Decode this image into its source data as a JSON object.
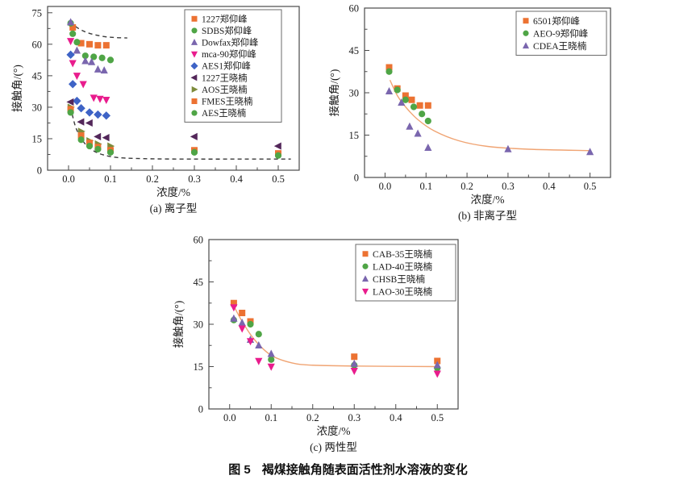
{
  "figure": {
    "caption_label": "图 5",
    "caption_text": "褐煤接触角随表面活性剂水溶液的变化"
  },
  "chart_data": [
    {
      "id": "a",
      "type": "scatter",
      "caption": "(a) 离子型",
      "xlabel": "浓度/%",
      "ylabel": "接触角/(°)",
      "xlim": [
        -0.05,
        0.55
      ],
      "ylim": [
        0,
        78
      ],
      "grid": false,
      "legend_position": "top-right",
      "xticks": [
        {
          "v": 0,
          "label": "0.0"
        },
        {
          "v": 0.1,
          "label": "0.1"
        },
        {
          "v": 0.2,
          "label": "0.2"
        },
        {
          "v": 0.3,
          "label": "0.3"
        },
        {
          "v": 0.4,
          "label": "0.4"
        },
        {
          "v": 0.5,
          "label": "0.5"
        }
      ],
      "yticks": [
        {
          "v": 0,
          "label": "0"
        },
        {
          "v": 15,
          "label": "15"
        },
        {
          "v": 30,
          "label": "30"
        },
        {
          "v": 45,
          "label": "45"
        },
        {
          "v": 60,
          "label": "60"
        },
        {
          "v": 75,
          "label": "75"
        }
      ],
      "series": [
        {
          "name": "1227郑仰峰",
          "marker": "square",
          "color": "#EC7232",
          "points": [
            [
              0.01,
              68
            ],
            [
              0.03,
              60.5
            ],
            [
              0.05,
              60
            ],
            [
              0.07,
              59.5
            ],
            [
              0.09,
              59.5
            ]
          ]
        },
        {
          "name": "SDBS郑仰峰",
          "marker": "circle",
          "color": "#4FA546",
          "points": [
            [
              0.005,
              70
            ],
            [
              0.01,
              65
            ],
            [
              0.02,
              61
            ],
            [
              0.04,
              54.5
            ],
            [
              0.06,
              54
            ],
            [
              0.08,
              53.5
            ],
            [
              0.1,
              52.5
            ]
          ]
        },
        {
          "name": "Dowfax郑仰峰",
          "marker": "triangle-up",
          "color": "#7A66AE",
          "points": [
            [
              0.005,
              70.5
            ],
            [
              0.02,
              57
            ],
            [
              0.04,
              52
            ],
            [
              0.055,
              51.5
            ],
            [
              0.07,
              48
            ],
            [
              0.085,
              47.5
            ]
          ]
        },
        {
          "name": "mca-90郑仰峰",
          "marker": "triangle-down",
          "color": "#E91C8D",
          "points": [
            [
              0.005,
              61.5
            ],
            [
              0.01,
              51
            ],
            [
              0.02,
              45
            ],
            [
              0.035,
              41
            ],
            [
              0.06,
              34.5
            ],
            [
              0.075,
              34
            ],
            [
              0.09,
              33.5
            ]
          ]
        },
        {
          "name": "AES1郑仰峰",
          "marker": "diamond",
          "color": "#3E63C6",
          "points": [
            [
              0.005,
              55
            ],
            [
              0.01,
              41
            ],
            [
              0.02,
              33
            ],
            [
              0.03,
              29.5
            ],
            [
              0.05,
              27.5
            ],
            [
              0.07,
              26.5
            ],
            [
              0.09,
              26
            ]
          ]
        },
        {
          "name": "1227王晓楠",
          "marker": "triangle-left",
          "color": "#53275A",
          "points": [
            [
              0.005,
              32.5
            ],
            [
              0.03,
              23
            ],
            [
              0.05,
              22.5
            ],
            [
              0.07,
              16
            ],
            [
              0.09,
              15.5
            ],
            [
              0.3,
              16
            ],
            [
              0.5,
              11.5
            ]
          ]
        },
        {
          "name": "AOS王晓楠",
          "marker": "triangle-right",
          "color": "#7D8B3B",
          "points": [
            [
              0.005,
              30
            ],
            [
              0.03,
              18.5
            ],
            [
              0.05,
              14
            ],
            [
              0.07,
              12.5
            ],
            [
              0.1,
              11.5
            ]
          ]
        },
        {
          "name": "FMES王晓楠",
          "marker": "square",
          "color": "#EC7232",
          "points": [
            [
              0.005,
              29
            ],
            [
              0.03,
              16.5
            ],
            [
              0.05,
              13
            ],
            [
              0.07,
              11
            ],
            [
              0.1,
              9.5
            ],
            [
              0.3,
              9.5
            ],
            [
              0.5,
              8
            ]
          ]
        },
        {
          "name": "AES王晓楠",
          "marker": "circle",
          "color": "#4FA546",
          "points": [
            [
              0.005,
              27.5
            ],
            [
              0.03,
              14.5
            ],
            [
              0.05,
              11.5
            ],
            [
              0.07,
              10
            ],
            [
              0.1,
              8.5
            ],
            [
              0.3,
              8.5
            ],
            [
              0.5,
              7
            ]
          ]
        }
      ],
      "curves": [
        {
          "style": "dashed",
          "color": "#3a3a3a",
          "points": [
            [
              0.005,
              71
            ],
            [
              0.02,
              68
            ],
            [
              0.045,
              65.5
            ],
            [
              0.08,
              63.8
            ],
            [
              0.11,
              63.2
            ],
            [
              0.14,
              63
            ]
          ]
        },
        {
          "style": "dashed",
          "color": "#3a3a3a",
          "points": [
            [
              0.005,
              30
            ],
            [
              0.02,
              19
            ],
            [
              0.05,
              10.5
            ],
            [
              0.1,
              6.5
            ],
            [
              0.18,
              5.5
            ],
            [
              0.3,
              5.3
            ],
            [
              0.42,
              5.3
            ],
            [
              0.53,
              5.3
            ]
          ]
        }
      ]
    },
    {
      "id": "b",
      "type": "scatter",
      "caption": "(b) 非离子型",
      "xlabel": "浓度/%",
      "ylabel": "接触角/(°)",
      "xlim": [
        -0.05,
        0.55
      ],
      "ylim": [
        0,
        60
      ],
      "grid": false,
      "legend_position": "top-right",
      "xticks": [
        {
          "v": 0,
          "label": "0.0"
        },
        {
          "v": 0.1,
          "label": "0.1"
        },
        {
          "v": 0.2,
          "label": "0.2"
        },
        {
          "v": 0.3,
          "label": "0.3"
        },
        {
          "v": 0.4,
          "label": "0.4"
        },
        {
          "v": 0.5,
          "label": "0.5"
        }
      ],
      "yticks": [
        {
          "v": 0,
          "label": "0"
        },
        {
          "v": 15,
          "label": "15"
        },
        {
          "v": 30,
          "label": "30"
        },
        {
          "v": 45,
          "label": "45"
        },
        {
          "v": 60,
          "label": "60"
        }
      ],
      "series": [
        {
          "name": "6501郑仰峰",
          "marker": "square",
          "color": "#EC7232",
          "points": [
            [
              0.01,
              39
            ],
            [
              0.03,
              31.5
            ],
            [
              0.05,
              29
            ],
            [
              0.065,
              27.5
            ],
            [
              0.085,
              25.5
            ],
            [
              0.105,
              25.5
            ]
          ]
        },
        {
          "name": "AEO-9郑仰峰",
          "marker": "circle",
          "color": "#4FA546",
          "points": [
            [
              0.01,
              37.5
            ],
            [
              0.03,
              31
            ],
            [
              0.05,
              27.5
            ],
            [
              0.07,
              25
            ],
            [
              0.09,
              22.5
            ],
            [
              0.105,
              20
            ]
          ]
        },
        {
          "name": "CDEA王晓楠",
          "marker": "triangle-up",
          "color": "#7A66AE",
          "points": [
            [
              0.01,
              30.5
            ],
            [
              0.04,
              26.5
            ],
            [
              0.06,
              18
            ],
            [
              0.08,
              15.5
            ],
            [
              0.105,
              10.5
            ],
            [
              0.3,
              10
            ],
            [
              0.5,
              9
            ]
          ]
        }
      ],
      "curves": [
        {
          "style": "solid",
          "color": "#F0A473",
          "points": [
            [
              0.012,
              34.5
            ],
            [
              0.03,
              29
            ],
            [
              0.05,
              25
            ],
            [
              0.08,
              20.5
            ],
            [
              0.12,
              16.5
            ],
            [
              0.18,
              13
            ],
            [
              0.25,
              11
            ],
            [
              0.35,
              10
            ],
            [
              0.5,
              9.5
            ]
          ]
        }
      ]
    },
    {
      "id": "c",
      "type": "scatter",
      "caption": "(c) 两性型",
      "xlabel": "浓度/%",
      "ylabel": "接触角/(°)",
      "xlim": [
        -0.05,
        0.55
      ],
      "ylim": [
        0,
        60
      ],
      "grid": false,
      "legend_position": "top-right",
      "xticks": [
        {
          "v": 0,
          "label": "0.0"
        },
        {
          "v": 0.1,
          "label": "0.1"
        },
        {
          "v": 0.2,
          "label": "0.2"
        },
        {
          "v": 0.3,
          "label": "0.3"
        },
        {
          "v": 0.4,
          "label": "0.4"
        },
        {
          "v": 0.5,
          "label": "0.5"
        }
      ],
      "yticks": [
        {
          "v": 0,
          "label": "0"
        },
        {
          "v": 15,
          "label": "15"
        },
        {
          "v": 30,
          "label": "30"
        },
        {
          "v": 45,
          "label": "45"
        },
        {
          "v": 60,
          "label": "60"
        }
      ],
      "series": [
        {
          "name": "CAB-35王晓楠",
          "marker": "square",
          "color": "#EC7232",
          "points": [
            [
              0.01,
              37.5
            ],
            [
              0.03,
              34
            ],
            [
              0.05,
              31
            ],
            [
              0.3,
              18.5
            ],
            [
              0.5,
              17
            ]
          ]
        },
        {
          "name": "LAD-40王晓楠",
          "marker": "circle",
          "color": "#4FA546",
          "points": [
            [
              0.01,
              31.5
            ],
            [
              0.05,
              30
            ],
            [
              0.07,
              26.5
            ],
            [
              0.1,
              17.5
            ],
            [
              0.3,
              15.5
            ],
            [
              0.5,
              14.5
            ]
          ]
        },
        {
          "name": "CHSB王晓楠",
          "marker": "triangle-up",
          "color": "#7A66AE",
          "points": [
            [
              0.01,
              32
            ],
            [
              0.03,
              30.5
            ],
            [
              0.05,
              24.5
            ],
            [
              0.07,
              22.5
            ],
            [
              0.1,
              19.5
            ],
            [
              0.3,
              16
            ],
            [
              0.5,
              15.5
            ]
          ]
        },
        {
          "name": "LAO-30王晓楠",
          "marker": "triangle-down",
          "color": "#E91C8D",
          "points": [
            [
              0.01,
              36
            ],
            [
              0.03,
              28.5
            ],
            [
              0.05,
              24
            ],
            [
              0.07,
              17
            ],
            [
              0.1,
              15
            ],
            [
              0.3,
              13.5
            ],
            [
              0.5,
              12.5
            ]
          ]
        }
      ],
      "curves": [
        {
          "style": "solid",
          "color": "#F0A473",
          "points": [
            [
              0.01,
              36.5
            ],
            [
              0.03,
              31
            ],
            [
              0.06,
              24.5
            ],
            [
              0.1,
              19
            ],
            [
              0.15,
              16.3
            ],
            [
              0.2,
              15.5
            ],
            [
              0.3,
              15.2
            ],
            [
              0.5,
              15
            ]
          ]
        }
      ]
    }
  ]
}
